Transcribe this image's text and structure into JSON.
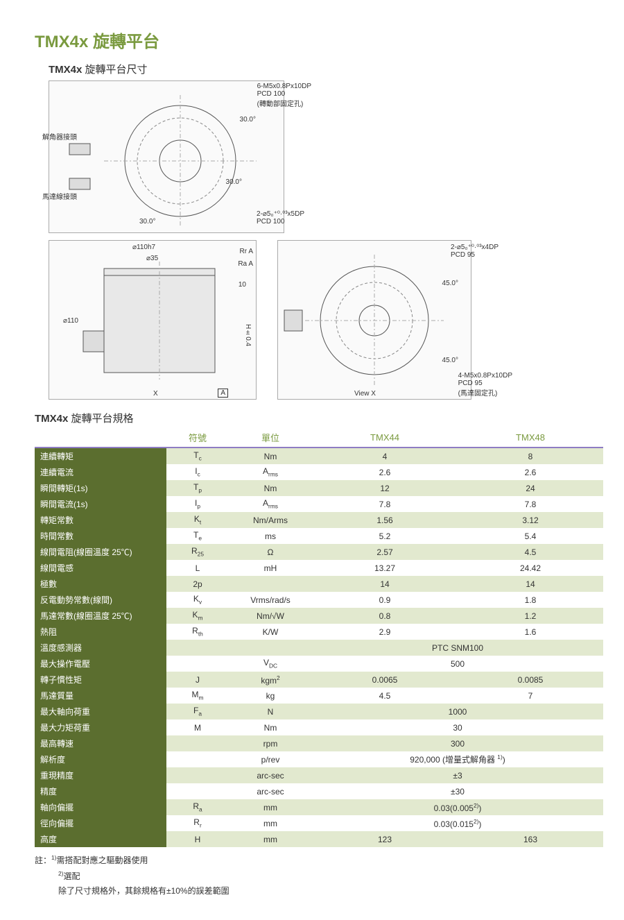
{
  "title": "TMX4x 旋轉平台",
  "subtitle_model": "TMX4x",
  "subtitle_rest": "旋轉平台尺寸",
  "diagram_labels": {
    "top_hole": "6-M5x0.8Px10DP",
    "top_pcd": "PCD 100",
    "top_note": "(轉動部固定孔)",
    "resolver": "解角器接頭",
    "motor_conn": "馬達線接頭",
    "pin_top": "2-⌀5₀⁺⁰·⁰³x5DP",
    "pin_top_pcd": "PCD 100",
    "ang30a": "30.0°",
    "ang30b": "30.0°",
    "ang30c": "30.0°",
    "d110h7": "⌀110h7",
    "d35": "⌀35",
    "d110": "⌀110",
    "rr": "Rr  A",
    "ra": "Ra  A",
    "ten": "10",
    "h04": "H±0.4",
    "x": "X",
    "a": "A",
    "pin_bot": "2-⌀5₀⁺⁰·⁰³x4DP",
    "pin_bot_pcd": "PCD 95",
    "ang45a": "45.0°",
    "ang45b": "45.0°",
    "viewx": "View X",
    "bot_hole": "4-M5x0.8Px10DP",
    "bot_pcd": "PCD 95",
    "bot_note": "(馬達固定孔)"
  },
  "spec_header": {
    "title_model": "TMX4x",
    "title_rest": "旋轉平台規格",
    "col_symbol": "符號",
    "col_unit": "單位",
    "col_v1": "TMX44",
    "col_v2": "TMX48"
  },
  "rows": [
    {
      "label": "連續轉矩",
      "sym": "T",
      "sub": "c",
      "unit": "Nm",
      "v1": "4",
      "v2": "8",
      "band": true
    },
    {
      "label": "連續電流",
      "sym": "I",
      "sub": "c",
      "unit": "A",
      "unit_sub": "rms",
      "v1": "2.6",
      "v2": "2.6",
      "band": false
    },
    {
      "label": "瞬間轉矩(1s)",
      "sym": "T",
      "sub": "p",
      "unit": "Nm",
      "v1": "12",
      "v2": "24",
      "band": true
    },
    {
      "label": "瞬間電流(1s)",
      "sym": "I",
      "sub": "p",
      "unit": "A",
      "unit_sub": "rms",
      "v1": "7.8",
      "v2": "7.8",
      "band": false
    },
    {
      "label": "轉矩常數",
      "sym": "K",
      "sub": "t",
      "unit": "Nm/Arms",
      "v1": "1.56",
      "v2": "3.12",
      "band": true
    },
    {
      "label": "時間常數",
      "sym": "T",
      "sub": "e",
      "unit": "ms",
      "v1": "5.2",
      "v2": "5.4",
      "band": false
    },
    {
      "label": "線間電阻(線圈溫度 25℃)",
      "sym": "R",
      "sub": "25",
      "unit": "Ω",
      "v1": "2.57",
      "v2": "4.5",
      "band": true
    },
    {
      "label": "線間電感",
      "sym": "L",
      "unit": "mH",
      "v1": "13.27",
      "v2": "24.42",
      "band": false
    },
    {
      "label": "極數",
      "sym": "2p",
      "unit": "",
      "v1": "14",
      "v2": "14",
      "band": true
    },
    {
      "label": "反電動勢常數(線間)",
      "sym": "K",
      "sub": "v",
      "unit": "Vrms/rad/s",
      "v1": "0.9",
      "v2": "1.8",
      "band": false
    },
    {
      "label": "馬達常數(線圈溫度 25℃)",
      "sym": "K",
      "sub": "m",
      "unit": "Nm/√W",
      "v1": "0.8",
      "v2": "1.2",
      "band": true
    },
    {
      "label": "熱阻",
      "sym": "R",
      "sub": "th",
      "unit": "K/W",
      "v1": "2.9",
      "v2": "1.6",
      "band": false
    },
    {
      "label": "溫度感測器",
      "sym": "",
      "unit": "",
      "merged": "PTC SNM100",
      "band": true
    },
    {
      "label": "最大操作電壓",
      "sym": "",
      "unit": "V",
      "unit_sub": "DC",
      "merged": "500",
      "band": false
    },
    {
      "label": "轉子慣性矩",
      "sym": "J",
      "unit": "kgm",
      "unit_sup": "2",
      "v1": "0.0065",
      "v2": "0.0085",
      "band": true
    },
    {
      "label": "馬達質量",
      "sym": "M",
      "sub": "m",
      "unit": "kg",
      "v1": "4.5",
      "v2": "7",
      "band": false
    },
    {
      "label": "最大軸向荷重",
      "sym": "F",
      "sub": "a",
      "unit": "N",
      "merged": "1000",
      "band": true
    },
    {
      "label": "最大力矩荷重",
      "sym": "M",
      "unit": "Nm",
      "merged": "30",
      "band": false
    },
    {
      "label": "最高轉速",
      "sym": "",
      "unit": "rpm",
      "merged": "300",
      "band": true
    },
    {
      "label": "解析度",
      "sym": "",
      "unit": "p/rev",
      "merged_html": "920,000 (增量式解角器 <sup>1)</sup>)",
      "band": false
    },
    {
      "label": "重現精度",
      "sym": "",
      "unit": "arc-sec",
      "merged": "±3",
      "band": true
    },
    {
      "label": "精度",
      "sym": "",
      "unit": "arc-sec",
      "merged": "±30",
      "band": false
    },
    {
      "label": "軸向偏擺",
      "sym": "R",
      "sub": "a",
      "unit": "mm",
      "merged_html": "0.03(0.005<sup>2)</sup>)",
      "band": true
    },
    {
      "label": "徑向偏擺",
      "sym": "R",
      "sub": "r",
      "unit": "mm",
      "merged_html": "0.03(0.015<sup>2)</sup>)",
      "band": false
    },
    {
      "label": "高度",
      "sym": "H",
      "unit": "mm",
      "v1": "123",
      "v2": "163",
      "band": true
    }
  ],
  "notes": {
    "prefix": "註：",
    "n1": "需搭配對應之驅動器使用",
    "n2": "選配",
    "tol": "除了尺寸規格外，其餘規格有±10%的誤差範圍"
  },
  "colors": {
    "accent": "#7a9a3f",
    "label_bg": "#5b6e2f",
    "band_bg": "#e2e9cf",
    "header_rule": "#8e7cc3"
  }
}
